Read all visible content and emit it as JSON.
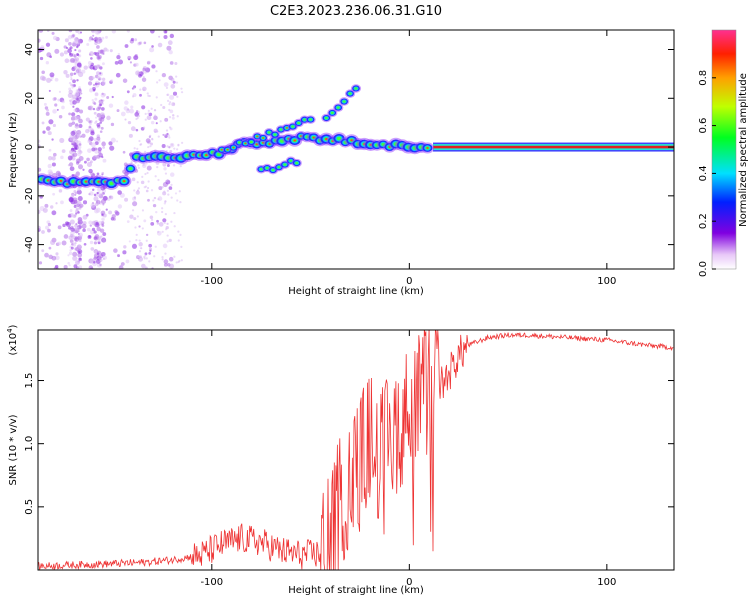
{
  "title": "C2E3.2023.236.06.31.G10",
  "chart_data": [
    {
      "type": "heatmap",
      "xlabel": "Height of straight line (km)",
      "ylabel": "Frequency (Hz)",
      "xlim": [
        -188,
        134
      ],
      "ylim": [
        -50,
        48
      ],
      "xticks": [
        -100,
        0,
        100
      ],
      "yticks": [
        -40,
        -20,
        0,
        20,
        40
      ],
      "colorbar": {
        "label": "Normalized spectral amplitude",
        "range": [
          0,
          1
        ],
        "ticks": [
          "0.0",
          "0.2",
          "0.4",
          "0.6",
          "0.8"
        ]
      },
      "ridge": [
        {
          "x": -188,
          "y": -14
        },
        {
          "x": -165,
          "y": -15
        },
        {
          "x": -145,
          "y": -14
        },
        {
          "x": -138,
          "y": -4
        },
        {
          "x": -120,
          "y": -4
        },
        {
          "x": -100,
          "y": -3
        },
        {
          "x": -85,
          "y": 1
        },
        {
          "x": -70,
          "y": 2
        },
        {
          "x": -60,
          "y": 3
        },
        {
          "x": -50,
          "y": 4
        },
        {
          "x": -40,
          "y": 3
        },
        {
          "x": -30,
          "y": 2
        },
        {
          "x": -15,
          "y": 1
        },
        {
          "x": 0,
          "y": 0
        },
        {
          "x": 12,
          "y": 0
        },
        {
          "x": 134,
          "y": 0
        }
      ],
      "branches": [
        {
          "x": [
            -95,
            -75,
            -60,
            -48
          ],
          "y": [
            -1,
            4,
            8,
            13
          ]
        },
        {
          "x": [
            -75,
            -62,
            -55
          ],
          "y": [
            -10,
            -7,
            -5
          ]
        },
        {
          "x": [
            -42,
            -33,
            -27
          ],
          "y": [
            12,
            18,
            24
          ]
        }
      ]
    },
    {
      "type": "line",
      "xlabel": "Height of straight line (km)",
      "ylabel": "SNR (10 * v/v)",
      "y_multiplier": "(x10",
      "y_multiplier_exp": "4",
      "y_multiplier_close": ")",
      "xlim": [
        -188,
        134
      ],
      "ylim": [
        0,
        1.9
      ],
      "xticks": [
        -100,
        0,
        100
      ],
      "yticks": [
        "0.5",
        "1.0",
        "1.5"
      ],
      "color": "#ee3333",
      "series": [
        {
          "x": [
            -188,
            -170,
            -150,
            -135,
            -120,
            -105,
            -95,
            -85,
            -75,
            -65,
            -55,
            -45,
            -40,
            -35,
            -30,
            -25,
            -20,
            -15,
            -10,
            -5,
            0,
            5,
            10,
            15,
            20,
            25,
            30,
            40,
            50,
            60,
            70,
            80,
            90,
            100,
            110,
            120,
            134
          ],
          "y": [
            0.03,
            0.04,
            0.05,
            0.06,
            0.08,
            0.12,
            0.2,
            0.25,
            0.22,
            0.15,
            0.12,
            0.13,
            0.2,
            0.55,
            0.7,
            0.85,
            1.05,
            0.9,
            1.0,
            1.2,
            1.25,
            1.35,
            1.4,
            1.45,
            1.55,
            1.7,
            1.78,
            1.84,
            1.86,
            1.86,
            1.85,
            1.84,
            1.83,
            1.82,
            1.8,
            1.78,
            1.76
          ]
        }
      ]
    }
  ]
}
